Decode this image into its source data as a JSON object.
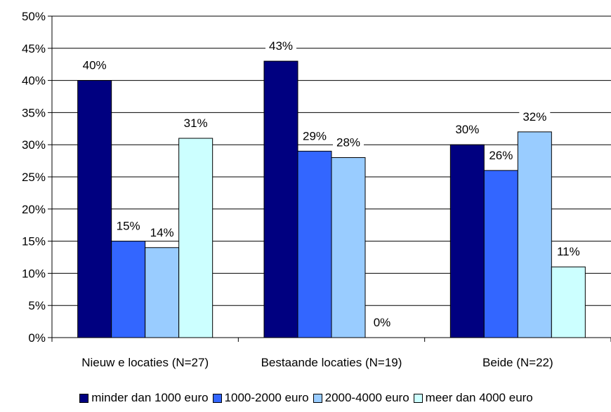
{
  "chart_data": {
    "type": "bar",
    "categories": [
      "Nieuw e locaties (N=27)",
      "Bestaande locaties (N=19)",
      "Beide (N=22)"
    ],
    "series": [
      {
        "name": "minder dan 1000 euro",
        "color": "#000080",
        "values": [
          40,
          43,
          30
        ],
        "labels": [
          "40%",
          "43%",
          "30%"
        ]
      },
      {
        "name": "1000-2000 euro",
        "color": "#3366FF",
        "values": [
          15,
          29,
          26
        ],
        "labels": [
          "15%",
          "29%",
          "26%"
        ]
      },
      {
        "name": "2000-4000 euro",
        "color": "#99CCFF",
        "values": [
          14,
          28,
          32
        ],
        "labels": [
          "14%",
          "28%",
          "32%"
        ]
      },
      {
        "name": "meer dan 4000 euro",
        "color": "#CCFFFF",
        "values": [
          31,
          0,
          11
        ],
        "labels": [
          "31%",
          "0%",
          "11%"
        ]
      }
    ],
    "yticks": [
      "0%",
      "5%",
      "10%",
      "15%",
      "20%",
      "25%",
      "30%",
      "35%",
      "40%",
      "45%",
      "50%"
    ],
    "ylim": [
      0,
      50
    ],
    "grid": true,
    "legend_position": "bottom"
  }
}
